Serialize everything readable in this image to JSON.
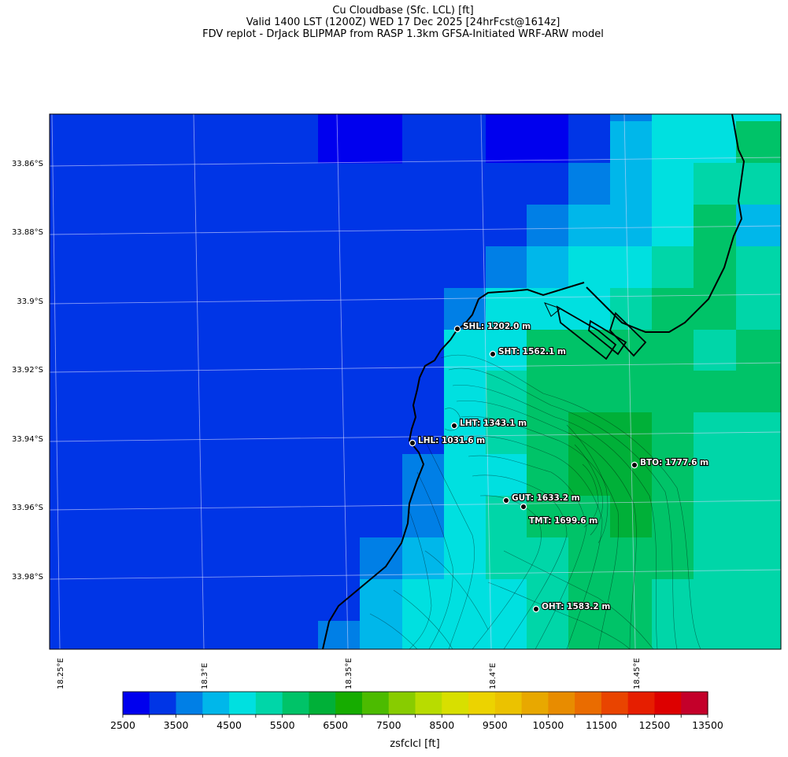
{
  "titles": {
    "line1": "Cu Cloudbase (Sfc. LCL) [ft]",
    "line2": "Valid 1400 LST (1200Z) WED 17 Dec 2025 [24hrFcst@1614z]",
    "line3": "FDV replot - DrJack BLIPMAP from RASP 1.3km GFSA-Initiated WRF-ARW model"
  },
  "lat_labels": [
    "33.86°S",
    "33.88°S",
    "33.9°S",
    "33.92°S",
    "33.94°S",
    "33.96°S",
    "33.98°S"
  ],
  "lon_labels": [
    "18.25°E",
    "18.3°E",
    "18.35°E",
    "18.4°E",
    "18.45°E"
  ],
  "stations": [
    {
      "name": "SHL",
      "value": "SHL: 1202.0 m"
    },
    {
      "name": "SHT",
      "value": "SHT: 1562.1 m"
    },
    {
      "name": "LHT",
      "value": "LHT: 1343.1 m"
    },
    {
      "name": "LHL",
      "value": "LHL: 1031.6 m"
    },
    {
      "name": "BTO",
      "value": "BTO: 1777.6 m"
    },
    {
      "name": "GUT",
      "value": "GUT: 1633.2 m"
    },
    {
      "name": "TMT",
      "value": "TMT: 1699.6 m"
    },
    {
      "name": "OHT",
      "value": "OHT: 1583.2 m"
    }
  ],
  "colorbar": {
    "label": "zsfclcl [ft]",
    "tick_labels": [
      "2500",
      "3500",
      "4500",
      "5500",
      "6500",
      "7500",
      "8500",
      "9500",
      "10500",
      "11500",
      "12500",
      "13500"
    ],
    "min": 2500,
    "max": 13500,
    "step": 500,
    "colors": [
      "#0000ee",
      "#0035e6",
      "#007fe6",
      "#00b7ea",
      "#00e0e0",
      "#00d6a8",
      "#00c368",
      "#00b038",
      "#16ac00",
      "#4cbb00",
      "#88cc00",
      "#b8dc00",
      "#d8df00",
      "#ecd300",
      "#ebc200",
      "#e8a800",
      "#e88c00",
      "#ea6c00",
      "#e94400",
      "#e61e00",
      "#dd0000",
      "#c4002a"
    ]
  },
  "grid_colors": {
    "ocean_base": "#0035e6",
    "land_contour": "#000000",
    "coastline": "#000000"
  }
}
